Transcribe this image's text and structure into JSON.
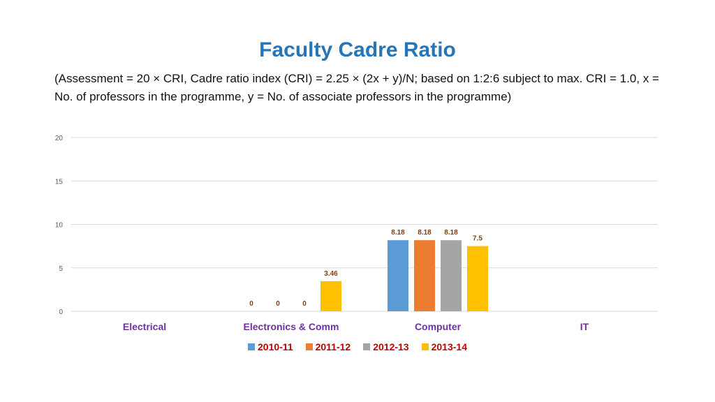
{
  "chart_data": {
    "type": "bar",
    "title": "Faculty Cadre Ratio",
    "subtitle": "(Assessment = 20 × CRI, Cadre ratio index (CRI) = 2.25 × (2x + y)/N; based on 1:2:6 subject to max. CRI = 1.0, x = No. of professors in the programme, y = No. of associate professors in the programme)",
    "categories": [
      "Electrical",
      "Electronics & Comm",
      "Computer",
      "IT"
    ],
    "series": [
      {
        "name": "2010-11",
        "color": "#5b9bd5",
        "values": [
          null,
          0,
          8.18,
          null
        ]
      },
      {
        "name": "2011-12",
        "color": "#ed7d31",
        "values": [
          null,
          0,
          8.18,
          null
        ]
      },
      {
        "name": "2012-13",
        "color": "#a5a5a5",
        "values": [
          null,
          0,
          8.18,
          null
        ]
      },
      {
        "name": "2013-14",
        "color": "#ffc000",
        "values": [
          null,
          3.46,
          7.5,
          null
        ]
      }
    ],
    "data_labels": [
      [
        null,
        "0",
        "8.18",
        null
      ],
      [
        null,
        "0",
        "8.18",
        null
      ],
      [
        null,
        "0",
        "8.18",
        null
      ],
      [
        null,
        "3.46",
        "7.5",
        null
      ]
    ],
    "ylim": [
      0,
      20
    ],
    "yticks": [
      "0",
      "5",
      "10",
      "15",
      "20"
    ],
    "xlabel": "",
    "ylabel": "",
    "grid": true,
    "legend_position": "bottom",
    "category_label_color": "#7030a0",
    "legend_label_color": "#c00000",
    "data_label_color": "#843c0c"
  }
}
